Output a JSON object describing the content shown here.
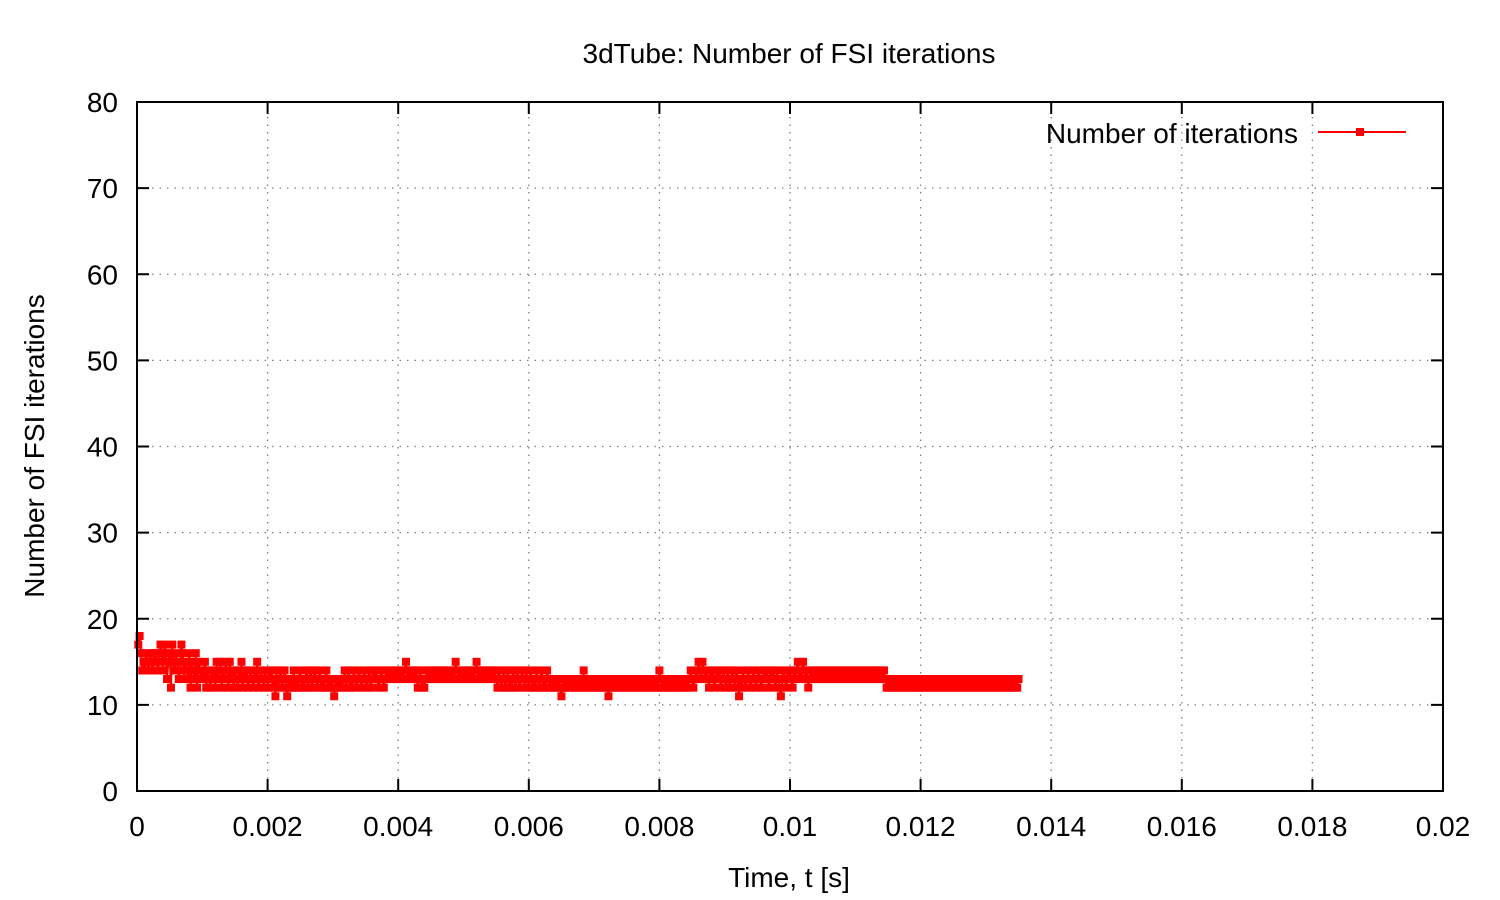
{
  "chart_data": {
    "type": "line",
    "title": "3dTube: Number of FSI iterations",
    "xlabel": "Time, t [s]",
    "ylabel": "Number of FSI iterations",
    "xlim": [
      0,
      0.02
    ],
    "ylim": [
      0,
      80
    ],
    "x_ticks": [
      "0",
      "0.002",
      "0.004",
      "0.006",
      "0.008",
      "0.01",
      "0.012",
      "0.014",
      "0.016",
      "0.018",
      "0.02"
    ],
    "y_ticks": [
      "0",
      "10",
      "20",
      "30",
      "40",
      "50",
      "60",
      "70",
      "80"
    ],
    "grid": true,
    "legend_position": "top-right",
    "series": [
      {
        "name": "Number of iterations",
        "color": "#ff0000",
        "marker": "square",
        "x_start": 2e-05,
        "x_step": 2e-05,
        "values": [
          17,
          18,
          16,
          14,
          15,
          14,
          16,
          15,
          14,
          16,
          15,
          14,
          16,
          15,
          16,
          14,
          15,
          17,
          16,
          14,
          17,
          16,
          13,
          15,
          16,
          12,
          17,
          15,
          14,
          16,
          15,
          13,
          14,
          17,
          16,
          13,
          15,
          14,
          13,
          16,
          12,
          15,
          14,
          13,
          16,
          12,
          15,
          14,
          13,
          14,
          13,
          15,
          12,
          14,
          13,
          12,
          14,
          13,
          14,
          12,
          15,
          13,
          14,
          15,
          12,
          14,
          13,
          15,
          14,
          12,
          15,
          13,
          14,
          12,
          14,
          13,
          12,
          14,
          13,
          15,
          12,
          14,
          13,
          14,
          12,
          13,
          14,
          13,
          12,
          14,
          13,
          15,
          12,
          13,
          14,
          13,
          12,
          14,
          13,
          12,
          14,
          13,
          14,
          12,
          13,
          11,
          14,
          12,
          13,
          14,
          12,
          13,
          14,
          12,
          11,
          13,
          12,
          13,
          12,
          14,
          12,
          13,
          12,
          13,
          14,
          12,
          13,
          12,
          13,
          14,
          12,
          13,
          14,
          12,
          13,
          14,
          13,
          12,
          13,
          14,
          12,
          13,
          12,
          13,
          14,
          12,
          13,
          12,
          13,
          12,
          11,
          13,
          12,
          13,
          12,
          13,
          12,
          13,
          14,
          12,
          13,
          14,
          12,
          13,
          12,
          14,
          13,
          12,
          13,
          14,
          13,
          12,
          13,
          14,
          13,
          12,
          13,
          14,
          12,
          13,
          14,
          13,
          14,
          13,
          12,
          13,
          14,
          13,
          12,
          13,
          14,
          13,
          14,
          13,
          14,
          13,
          14,
          13,
          14,
          13,
          14,
          13,
          14,
          13,
          14,
          15,
          13,
          14,
          13,
          14,
          13,
          14,
          13,
          14,
          12,
          13,
          14,
          12,
          13,
          12,
          13,
          14,
          13,
          14,
          13,
          14,
          13,
          14,
          13,
          14,
          13,
          14,
          13,
          14,
          13,
          14,
          13,
          14,
          13,
          14,
          13,
          14,
          13,
          15,
          14,
          13,
          14,
          13,
          14,
          13,
          14,
          13,
          14,
          13,
          14,
          13,
          14,
          13,
          14,
          15,
          13,
          14,
          13,
          14,
          13,
          14,
          13,
          14,
          13,
          14,
          13,
          14,
          13,
          14,
          13,
          12,
          14,
          13,
          12,
          13,
          14,
          12,
          13,
          14,
          12,
          13,
          12,
          14,
          13,
          12,
          14,
          13,
          12,
          13,
          14,
          13,
          12,
          14,
          13,
          12,
          14,
          13,
          12,
          13,
          12,
          14,
          13,
          12,
          13,
          14,
          12,
          13,
          12,
          14,
          13,
          12,
          13,
          12,
          13,
          12,
          13,
          12,
          13,
          12,
          11,
          13,
          12,
          13,
          12,
          13,
          12,
          13,
          12,
          13,
          12,
          13,
          12,
          13,
          12,
          13,
          12,
          14,
          12,
          13,
          12,
          13,
          12,
          13,
          12,
          13,
          12,
          13,
          12,
          13,
          12,
          13,
          12,
          13,
          12,
          13,
          11,
          13,
          12,
          13,
          12,
          13,
          12,
          13,
          12,
          13,
          12,
          13,
          12,
          13,
          12,
          13,
          12,
          13,
          12,
          13,
          12,
          13,
          12,
          13,
          12,
          13,
          12,
          13,
          12,
          13,
          12,
          13,
          12,
          13,
          12,
          13,
          12,
          13,
          12,
          14,
          13,
          12,
          13,
          12,
          13,
          12,
          13,
          12,
          13,
          12,
          13,
          12,
          13,
          12,
          13,
          12,
          13,
          12,
          13,
          12,
          13,
          12,
          13,
          14,
          13,
          12,
          13,
          14,
          13,
          15,
          14,
          13,
          15,
          14,
          13,
          14,
          13,
          12,
          14,
          13,
          14,
          12,
          13,
          14,
          13,
          14,
          12,
          13,
          14,
          13,
          12,
          14,
          13,
          12,
          13,
          14,
          13,
          12,
          14,
          13,
          11,
          13,
          12,
          14,
          13,
          12,
          13,
          14,
          13,
          12,
          13,
          14,
          13,
          12,
          13,
          14,
          13,
          12,
          13,
          14,
          13,
          14,
          13,
          12,
          14,
          13,
          14,
          13,
          12,
          14,
          13,
          12,
          11,
          13,
          14,
          13,
          12,
          14,
          13,
          14,
          13,
          12,
          14,
          13,
          14,
          15,
          13,
          14,
          13,
          15,
          14,
          13,
          14,
          12,
          13,
          14,
          13,
          14,
          13,
          14,
          13,
          14,
          13,
          14,
          13,
          14,
          13,
          14,
          13,
          14,
          13,
          14,
          13,
          14,
          13,
          14,
          13,
          14,
          13,
          14,
          13,
          14,
          13,
          14,
          13,
          14,
          13,
          14,
          13,
          14,
          13,
          14,
          13,
          14,
          13,
          14,
          13,
          14,
          13,
          14,
          13,
          14,
          13,
          14,
          13,
          14,
          13,
          14,
          13,
          14,
          13,
          14,
          13,
          12,
          13,
          12,
          13,
          12,
          13,
          12,
          13,
          12,
          13,
          12,
          13,
          12,
          13,
          12,
          13,
          12,
          13,
          12,
          13,
          12,
          13,
          12,
          13,
          12,
          13,
          12,
          13,
          12,
          13,
          12,
          13,
          12,
          13,
          12,
          13,
          12,
          13,
          12,
          13,
          12,
          13,
          12,
          13,
          12,
          13,
          12,
          13,
          12,
          13,
          12,
          13,
          12,
          13,
          12,
          13,
          12,
          13,
          12,
          13,
          12,
          13,
          12,
          13,
          12,
          13,
          12,
          13,
          12,
          13,
          12,
          13,
          12,
          13,
          12,
          13,
          12,
          13,
          12,
          13,
          12,
          13,
          12,
          13,
          12,
          13,
          12,
          13,
          12,
          13,
          12,
          13,
          12,
          13,
          12,
          13,
          12,
          13,
          12,
          13,
          12,
          13
        ]
      }
    ]
  }
}
